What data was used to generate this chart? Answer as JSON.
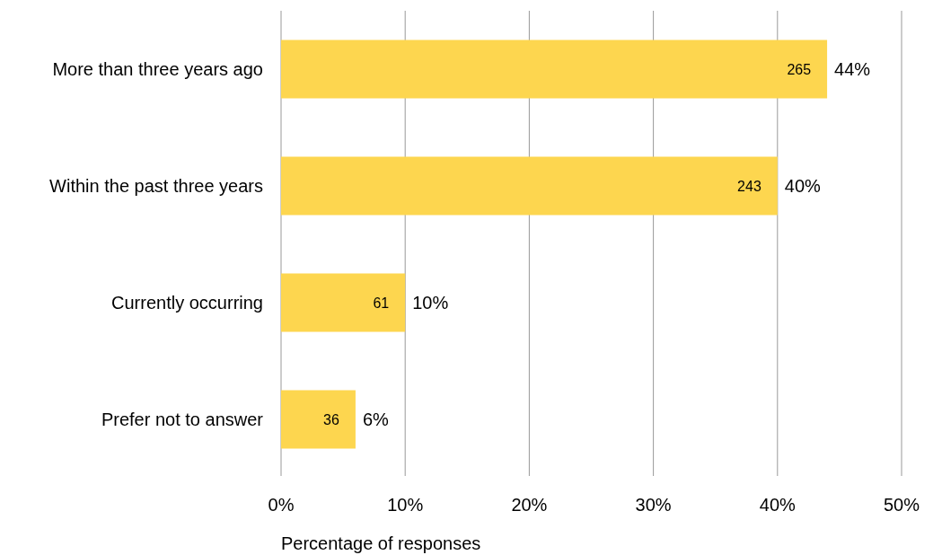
{
  "chart_data": {
    "type": "bar",
    "orientation": "horizontal",
    "xlabel": "Percentage of responses",
    "categories": [
      "More than three years ago",
      "Within the past three years",
      "Currently occurring",
      "Prefer not to answer"
    ],
    "values": [
      44,
      40,
      10,
      6
    ],
    "value_labels": [
      "44%",
      "40%",
      "10%",
      "6%"
    ],
    "color": "#fdd64f",
    "xlim": [
      0,
      50
    ],
    "xticks": [
      {
        "value": 0,
        "label": "0%"
      },
      {
        "value": 10,
        "label": "10%"
      },
      {
        "value": 20,
        "label": "20%"
      },
      {
        "value": 30,
        "label": "30%"
      },
      {
        "value": 40,
        "label": "40%"
      },
      {
        "value": 50,
        "label": "50%"
      }
    ],
    "grid": "x",
    "annotations": [
      {
        "text": "265",
        "x": 44,
        "y": "More than three years ago"
      },
      {
        "text": "243",
        "x": 40,
        "y": "Within the past three years"
      },
      {
        "text": "61",
        "x": 10,
        "y": "Currently occurring"
      },
      {
        "text": "36",
        "x": 6,
        "y": "Prefer not to answer"
      }
    ]
  }
}
